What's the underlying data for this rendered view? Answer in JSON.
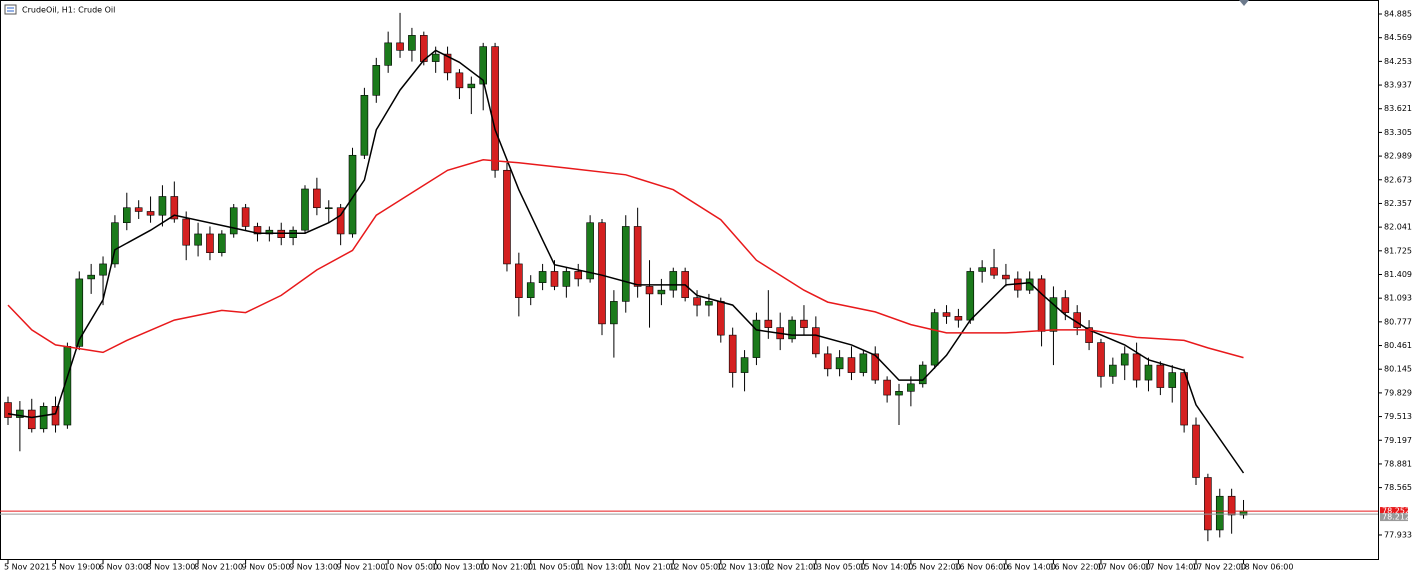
{
  "chart_data": {
    "type": "candlestick",
    "title": "CrudeOil, H1: Crude Oil",
    "categories": [
      "5 Nov 2021",
      null,
      null,
      null,
      "5 Nov 19:00",
      null,
      null,
      null,
      "6 Nov 03:00",
      null,
      null,
      null,
      "8 Nov 13:00",
      null,
      null,
      null,
      "8 Nov 21:00",
      null,
      null,
      null,
      "9 Nov 05:00",
      null,
      null,
      null,
      "9 Nov 13:00",
      null,
      null,
      null,
      "9 Nov 21:00",
      null,
      null,
      null,
      "10 Nov 05:00",
      null,
      null,
      null,
      "10 Nov 13:00",
      null,
      null,
      null,
      "10 Nov 21:00",
      null,
      null,
      null,
      "11 Nov 05:00",
      null,
      null,
      null,
      "11 Nov 13:00",
      null,
      null,
      null,
      "11 Nov 21:00",
      null,
      null,
      null,
      "12 Nov 05:00",
      null,
      null,
      null,
      "12 Nov 13:00",
      null,
      null,
      null,
      "12 Nov 21:00",
      null,
      null,
      null,
      "13 Nov 05:00",
      null,
      null,
      null,
      "15 Nov 14:00",
      null,
      null,
      null,
      "15 Nov 22:00",
      null,
      null,
      null,
      "16 Nov 06:00",
      null,
      null,
      null,
      "16 Nov 14:00",
      null,
      null,
      null,
      "16 Nov 22:00",
      null,
      null,
      null,
      "17 Nov 06:00",
      null,
      null,
      null,
      "17 Nov 14:00",
      null,
      null,
      null,
      "17 Nov 22:00",
      null,
      null,
      null,
      "18 Nov 06:00"
    ],
    "open": [
      79.7,
      79.5,
      79.6,
      79.35,
      79.65,
      79.4,
      80.45,
      81.35,
      81.4,
      81.55,
      82.1,
      82.3,
      82.25,
      82.2,
      82.45,
      82.15,
      81.8,
      81.95,
      81.7,
      81.95,
      82.3,
      82.05,
      81.95,
      82.0,
      81.9,
      82.0,
      82.55,
      82.3,
      82.3,
      81.95,
      83.0,
      83.8,
      84.2,
      84.5,
      84.4,
      84.6,
      84.25,
      84.35,
      84.1,
      83.9,
      83.95,
      84.45,
      82.8,
      81.55,
      81.1,
      81.3,
      81.45,
      81.25,
      81.45,
      81.35,
      82.1,
      80.75,
      81.05,
      82.05,
      81.25,
      81.15,
      81.2,
      81.45,
      81.1,
      81.0,
      81.05,
      80.6,
      80.1,
      80.3,
      80.8,
      80.7,
      80.55,
      80.8,
      80.7,
      80.35,
      80.15,
      80.3,
      80.1,
      80.35,
      80.0,
      79.8,
      79.85,
      79.95,
      80.2,
      80.9,
      80.85,
      80.8,
      81.45,
      81.5,
      81.4,
      81.35,
      81.2,
      81.35,
      80.65,
      81.1,
      80.9,
      80.7,
      80.5,
      80.05,
      80.2,
      80.35,
      80.0,
      80.2,
      79.9,
      80.1,
      79.4,
      78.7,
      78.0,
      78.45,
      78.2
    ],
    "high": [
      79.78,
      79.72,
      79.75,
      79.7,
      79.78,
      80.5,
      81.45,
      81.55,
      81.65,
      82.2,
      82.5,
      82.4,
      82.45,
      82.6,
      82.65,
      82.25,
      82.1,
      82.05,
      82.0,
      82.35,
      82.35,
      82.1,
      82.05,
      82.1,
      82.05,
      82.6,
      82.7,
      82.4,
      82.35,
      83.1,
      83.9,
      84.3,
      84.65,
      84.9,
      84.7,
      84.65,
      84.45,
      84.45,
      84.15,
      84.05,
      84.5,
      84.5,
      82.9,
      81.7,
      81.4,
      81.55,
      81.6,
      81.5,
      81.55,
      82.2,
      82.15,
      81.2,
      82.2,
      82.3,
      81.6,
      81.35,
      81.5,
      81.5,
      81.2,
      81.15,
      81.1,
      80.7,
      80.4,
      80.9,
      81.2,
      80.9,
      80.85,
      81.0,
      80.85,
      80.45,
      80.4,
      80.45,
      80.4,
      80.45,
      80.05,
      79.95,
      80.05,
      80.25,
      80.95,
      81.0,
      80.95,
      81.5,
      81.6,
      81.75,
      81.55,
      81.45,
      81.45,
      81.4,
      81.25,
      81.2,
      81.0,
      80.8,
      80.55,
      80.3,
      80.45,
      80.5,
      80.3,
      80.25,
      80.2,
      80.15,
      79.5,
      78.75,
      78.55,
      78.55,
      78.4
    ],
    "low": [
      79.4,
      79.05,
      79.3,
      79.3,
      79.3,
      79.35,
      80.4,
      81.15,
      81.0,
      81.5,
      82.0,
      82.15,
      82.1,
      82.05,
      82.1,
      81.6,
      81.65,
      81.6,
      81.65,
      81.9,
      82.0,
      81.85,
      81.85,
      81.8,
      81.8,
      81.95,
      82.2,
      82.1,
      81.8,
      81.9,
      82.95,
      83.7,
      84.1,
      84.3,
      84.25,
      84.2,
      84.1,
      84.0,
      83.75,
      83.55,
      83.6,
      82.7,
      81.45,
      80.85,
      81.0,
      81.2,
      81.2,
      81.1,
      81.25,
      81.3,
      80.6,
      80.3,
      80.9,
      81.1,
      80.7,
      81.0,
      81.1,
      81.05,
      80.85,
      80.85,
      80.5,
      79.9,
      79.85,
      80.2,
      80.55,
      80.4,
      80.5,
      80.6,
      80.3,
      80.05,
      80.05,
      80.0,
      80.05,
      79.95,
      79.7,
      79.4,
      79.65,
      79.9,
      80.15,
      80.75,
      80.7,
      80.75,
      81.3,
      81.35,
      81.25,
      81.1,
      81.15,
      80.45,
      80.2,
      80.8,
      80.6,
      80.4,
      79.9,
      79.95,
      80.0,
      79.9,
      79.85,
      79.8,
      79.7,
      79.3,
      78.6,
      77.85,
      77.9,
      77.95,
      78.15
    ],
    "close": [
      79.5,
      79.6,
      79.35,
      79.65,
      79.4,
      80.45,
      81.35,
      81.4,
      81.55,
      82.1,
      82.3,
      82.25,
      82.2,
      82.45,
      82.15,
      81.8,
      81.95,
      81.7,
      81.95,
      82.3,
      82.05,
      81.95,
      82.0,
      81.9,
      82.0,
      82.55,
      82.3,
      82.3,
      81.95,
      83.0,
      83.8,
      84.2,
      84.5,
      84.4,
      84.6,
      84.25,
      84.35,
      84.1,
      83.9,
      83.95,
      84.45,
      82.8,
      81.55,
      81.1,
      81.3,
      81.45,
      81.25,
      81.45,
      81.35,
      82.1,
      80.75,
      81.05,
      82.05,
      81.25,
      81.15,
      81.2,
      81.45,
      81.1,
      81.0,
      81.05,
      80.6,
      80.1,
      80.3,
      80.8,
      80.7,
      80.55,
      80.8,
      80.7,
      80.35,
      80.15,
      80.3,
      80.1,
      80.35,
      80.0,
      79.8,
      79.85,
      79.95,
      80.2,
      80.9,
      80.85,
      80.8,
      81.45,
      81.5,
      81.4,
      81.35,
      81.2,
      81.35,
      80.65,
      81.1,
      80.9,
      80.7,
      80.5,
      80.05,
      80.2,
      80.35,
      80.0,
      80.2,
      79.9,
      80.1,
      79.4,
      78.7,
      78.0,
      78.45,
      78.2,
      78.25
    ],
    "up_color": "#1b7a1b",
    "down_color": "#d42020",
    "lines": [
      {
        "color": "#000000",
        "x": [
          0,
          2,
          4,
          6,
          8,
          9,
          12,
          14,
          19,
          21,
          25,
          27,
          28,
          30,
          31,
          33,
          35,
          36,
          38,
          40,
          41,
          43,
          45,
          46,
          50,
          53,
          57,
          58,
          61,
          63,
          66,
          68,
          71,
          73,
          75,
          77,
          79,
          81,
          84,
          86,
          87,
          89,
          91,
          94,
          96,
          99,
          100,
          104
        ],
        "values": [
          79.55,
          79.5,
          79.55,
          80.54,
          81.07,
          81.74,
          82.0,
          82.2,
          82.03,
          81.96,
          81.96,
          82.1,
          82.2,
          82.67,
          83.34,
          83.87,
          84.27,
          84.4,
          84.24,
          84.0,
          83.34,
          82.54,
          81.87,
          81.54,
          81.4,
          81.27,
          81.27,
          81.13,
          81.0,
          80.67,
          80.6,
          80.6,
          80.47,
          80.33,
          80.0,
          80.0,
          80.33,
          80.8,
          81.27,
          81.3,
          81.15,
          80.87,
          80.67,
          80.47,
          80.27,
          80.13,
          79.67,
          78.76
        ]
      },
      {
        "color": "#e8191b",
        "x": [
          0,
          2,
          4,
          8,
          10,
          14,
          18,
          20,
          23,
          26,
          29,
          31,
          35,
          37,
          40,
          43,
          47,
          52,
          56,
          60,
          63,
          67,
          69,
          73,
          76,
          79,
          84,
          88,
          91,
          95,
          99,
          101,
          104
        ],
        "values": [
          81.0,
          80.67,
          80.47,
          80.37,
          80.53,
          80.8,
          80.93,
          80.9,
          81.13,
          81.47,
          81.73,
          82.2,
          82.6,
          82.8,
          82.94,
          82.9,
          82.83,
          82.74,
          82.54,
          82.14,
          81.6,
          81.2,
          81.04,
          80.91,
          80.74,
          80.63,
          80.63,
          80.67,
          80.67,
          80.57,
          80.53,
          80.43,
          80.3
        ]
      }
    ],
    "price_lines": [
      {
        "value": 78.252,
        "color": "#e8191b"
      },
      {
        "value": 78.212,
        "color": "#9a9a9a"
      }
    ],
    "ylim": [
      77.599,
      85.072
    ],
    "yticks": [
      84.885,
      84.569,
      84.253,
      83.937,
      83.621,
      83.305,
      82.989,
      82.673,
      82.357,
      82.041,
      81.725,
      81.409,
      81.093,
      80.777,
      80.461,
      80.145,
      79.829,
      79.513,
      79.197,
      78.881,
      78.565,
      77.933
    ]
  }
}
